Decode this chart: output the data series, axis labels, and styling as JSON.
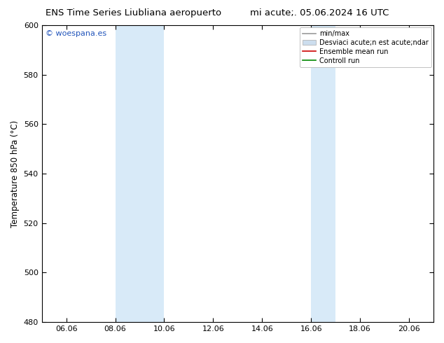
{
  "title_left": "ENS Time Series Liubliana aeropuerto",
  "title_right": "mi acute;. 05.06.2024 16 UTC",
  "ylabel": "Temperature 850 hPa (°C)",
  "ylim": [
    480,
    600
  ],
  "yticks": [
    480,
    500,
    520,
    540,
    560,
    580,
    600
  ],
  "xlim_start": 5,
  "xlim_end": 21,
  "xtick_labels": [
    "06.06",
    "08.06",
    "10.06",
    "12.06",
    "14.06",
    "16.06",
    "18.06",
    "20.06"
  ],
  "xtick_positions": [
    6,
    8,
    10,
    12,
    14,
    16,
    18,
    20
  ],
  "shaded_bands": [
    {
      "x_start": 8,
      "x_end": 10
    },
    {
      "x_start": 16,
      "x_end": 17
    }
  ],
  "band_color": "#d8eaf8",
  "watermark": "© woespana.es",
  "watermark_color": "#2255bb",
  "legend_entries": [
    {
      "label": "min/max",
      "color": "#999999",
      "lw": 1.2,
      "type": "line"
    },
    {
      "label": "Desviaci acute;n est acute;ndar",
      "color": "#ccddee",
      "lw": 8,
      "type": "band"
    },
    {
      "label": "Ensemble mean run",
      "color": "#cc0000",
      "lw": 1.2,
      "type": "line"
    },
    {
      "label": "Controll run",
      "color": "#008800",
      "lw": 1.2,
      "type": "line"
    }
  ],
  "bg_color": "#ffffff",
  "plot_bg_color": "#ffffff",
  "spine_color": "#000000",
  "title_fontsize": 9.5,
  "axis_fontsize": 8.5,
  "tick_fontsize": 8
}
